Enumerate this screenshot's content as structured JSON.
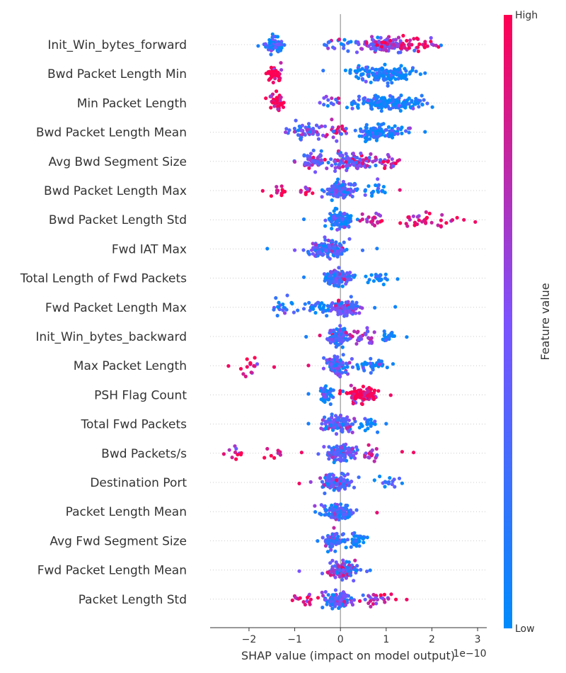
{
  "chart_data": {
    "type": "scatter",
    "subtype": "shap-beeswarm",
    "xlabel": "SHAP value (impact on model output)",
    "x_offset_label": "1e−10",
    "xlim": [
      -2.85,
      3.2
    ],
    "xticks": [
      -2,
      -1,
      0,
      1,
      2,
      3
    ],
    "xtick_labels": [
      "−2",
      "−1",
      "0",
      "1",
      "2",
      "3"
    ],
    "colorbar": {
      "title": "Feature value",
      "high_label": "High",
      "low_label": "Low",
      "low_color": "#008bfb",
      "mid_color": "#7c52ff",
      "high_color": "#ff0052"
    },
    "features": [
      {
        "name": "Init_Win_bytes_forward",
        "clusters": [
          [
            -1.45,
            0.2,
            60,
            0.1,
            0.85
          ],
          [
            0.0,
            0.32,
            18,
            0.3
          ],
          [
            1.0,
            0.55,
            110,
            0.55
          ],
          [
            1.5,
            0.6,
            40,
            0.9
          ]
        ],
        "outliers": [
          [
            -1.8,
            0.1
          ],
          [
            -0.35,
            0.2
          ],
          [
            2.2,
            0.1
          ],
          [
            2.0,
            0.6
          ]
        ]
      },
      {
        "name": "Bwd Packet Length Min",
        "clusters": [
          [
            -1.45,
            0.15,
            50,
            0.95,
            0.95
          ],
          [
            0.95,
            0.6,
            150,
            0.05,
            0.8
          ]
        ],
        "outliers": [
          [
            1.85,
            0.1
          ],
          [
            1.75,
            0.0
          ]
        ]
      },
      {
        "name": "Min Packet Length",
        "clusters": [
          [
            -1.4,
            0.17,
            45,
            0.95,
            0.9
          ],
          [
            -0.15,
            0.2,
            12,
            0.5
          ],
          [
            1.0,
            0.7,
            170,
            0.05
          ]
        ],
        "outliers": [
          [
            -0.45,
            0.5
          ],
          [
            1.7,
            0.05
          ]
        ]
      },
      {
        "name": "Bwd Packet Length Mean",
        "clusters": [
          [
            -0.75,
            0.3,
            50,
            0.4,
            0.95
          ],
          [
            -0.1,
            0.2,
            25,
            0.7
          ],
          [
            0.85,
            0.45,
            110,
            0.1
          ]
        ],
        "outliers": [
          [
            -1.2,
            0.6
          ],
          [
            1.85,
            0.05
          ],
          [
            1.5,
            0.1
          ]
        ]
      },
      {
        "name": "Avg Bwd Segment Size",
        "clusters": [
          [
            -0.6,
            0.3,
            60,
            0.4,
            0.95
          ],
          [
            0.25,
            0.45,
            120,
            0.5
          ],
          [
            1.0,
            0.2,
            20,
            0.8
          ]
        ],
        "outliers": [
          [
            -1.0,
            0.7
          ],
          [
            1.25,
            0.9
          ]
        ]
      },
      {
        "name": "Bwd Packet Length Max",
        "clusters": [
          [
            -1.3,
            0.15,
            12,
            0.95
          ],
          [
            -0.75,
            0.15,
            12,
            0.95
          ],
          [
            0.0,
            0.3,
            130,
            0.35
          ],
          [
            0.8,
            0.3,
            20,
            0.05
          ]
        ],
        "outliers": [
          [
            -1.7,
            0.95
          ],
          [
            1.3,
            0.9
          ]
        ]
      },
      {
        "name": "Bwd Packet Length Std",
        "clusters": [
          [
            0.0,
            0.25,
            130,
            0.15,
            0.9
          ],
          [
            0.7,
            0.2,
            20,
            0.8
          ],
          [
            1.8,
            0.55,
            30,
            0.9
          ]
        ],
        "outliers": [
          [
            -0.8,
            0.1
          ],
          [
            2.95,
            0.95
          ],
          [
            2.7,
            0.95
          ],
          [
            2.45,
            0.9
          ],
          [
            2.2,
            0.95
          ]
        ]
      },
      {
        "name": "Fwd IAT Max",
        "clusters": [
          [
            -0.3,
            0.4,
            140,
            0.3,
            0.85
          ]
        ],
        "outliers": [
          [
            -1.6,
            0.05
          ],
          [
            -1.0,
            0.5
          ],
          [
            0.8,
            0.1
          ]
        ]
      },
      {
        "name": "Total Length of Fwd Packets",
        "clusters": [
          [
            -0.05,
            0.28,
            120,
            0.3
          ],
          [
            0.8,
            0.25,
            20,
            0.05
          ]
        ],
        "outliers": [
          [
            -0.8,
            0.1
          ],
          [
            1.25,
            0.05
          ]
        ]
      },
      {
        "name": "Fwd Packet Length Max",
        "clusters": [
          [
            -1.25,
            0.25,
            20,
            0.05,
            0.85
          ],
          [
            -0.45,
            0.3,
            40,
            0.15
          ],
          [
            0.15,
            0.25,
            110,
            0.45
          ]
        ],
        "outliers": [
          [
            1.2,
            0.05
          ],
          [
            0.75,
            0.1
          ]
        ]
      },
      {
        "name": "Init_Win_bytes_backward",
        "clusters": [
          [
            -0.05,
            0.22,
            110,
            0.3,
            0.85
          ],
          [
            0.5,
            0.25,
            30,
            0.6
          ],
          [
            1.1,
            0.18,
            18,
            0.1
          ]
        ],
        "outliers": [
          [
            -0.75,
            0.1
          ],
          [
            -0.45,
            0.9
          ],
          [
            1.45,
            0.05
          ]
        ]
      },
      {
        "name": "Max Packet Length",
        "clusters": [
          [
            -2.0,
            0.2,
            14,
            0.95,
            0.95
          ],
          [
            -0.1,
            0.2,
            100,
            0.3,
            0.85
          ],
          [
            0.65,
            0.3,
            40,
            0.05
          ]
        ],
        "outliers": [
          [
            -2.45,
            0.95
          ],
          [
            -1.45,
            0.95
          ],
          [
            -0.7,
            0.9
          ],
          [
            1.15,
            0.05
          ]
        ]
      },
      {
        "name": "PSH Flag Count",
        "clusters": [
          [
            -0.3,
            0.15,
            50,
            0.05,
            0.85
          ],
          [
            0.45,
            0.3,
            110,
            0.95
          ]
        ],
        "outliers": [
          [
            -0.7,
            0.1
          ],
          [
            1.1,
            0.95
          ]
        ]
      },
      {
        "name": "Total Fwd Packets",
        "clusters": [
          [
            -0.05,
            0.28,
            120,
            0.35,
            0.8
          ],
          [
            0.6,
            0.2,
            20,
            0.05
          ]
        ],
        "outliers": [
          [
            -0.7,
            0.1
          ],
          [
            1.0,
            0.1
          ]
        ]
      },
      {
        "name": "Bwd Packets/s",
        "clusters": [
          [
            -2.3,
            0.2,
            10,
            0.95
          ],
          [
            -1.4,
            0.3,
            8,
            0.95
          ],
          [
            0.0,
            0.3,
            130,
            0.35,
            0.8
          ],
          [
            0.65,
            0.2,
            20,
            0.8
          ]
        ],
        "outliers": [
          [
            -2.55,
            0.9
          ],
          [
            -0.85,
            0.95
          ],
          [
            1.35,
            0.95
          ],
          [
            1.6,
            0.95
          ]
        ]
      },
      {
        "name": "Destination Port",
        "clusters": [
          [
            -0.1,
            0.3,
            120,
            0.3,
            0.8
          ],
          [
            1.0,
            0.25,
            15,
            0.05
          ]
        ],
        "outliers": [
          [
            -0.9,
            0.95
          ],
          [
            1.35,
            0.05
          ],
          [
            -0.65,
            0.6
          ]
        ]
      },
      {
        "name": "Packet Length Mean",
        "clusters": [
          [
            -0.05,
            0.28,
            130,
            0.3,
            0.8
          ]
        ],
        "outliers": [
          [
            -0.55,
            0.1
          ],
          [
            0.8,
            0.9
          ]
        ]
      },
      {
        "name": "Avg Fwd Segment Size",
        "clusters": [
          [
            -0.15,
            0.2,
            90,
            0.3,
            0.8
          ],
          [
            0.35,
            0.2,
            40,
            0.05
          ]
        ],
        "outliers": [
          [
            -0.5,
            0.1
          ]
        ]
      },
      {
        "name": "Fwd Packet Length Mean",
        "clusters": [
          [
            0.05,
            0.27,
            130,
            0.45,
            0.85
          ]
        ],
        "outliers": [
          [
            -0.9,
            0.5
          ],
          [
            0.65,
            0.1
          ]
        ]
      },
      {
        "name": "Packet Length Std",
        "clusters": [
          [
            -0.8,
            0.2,
            15,
            0.9
          ],
          [
            -0.05,
            0.3,
            120,
            0.3,
            0.85
          ],
          [
            0.75,
            0.35,
            25,
            0.85
          ]
        ],
        "outliers": [
          [
            -1.05,
            0.95
          ],
          [
            1.45,
            0.95
          ]
        ]
      }
    ],
    "cluster_fields": [
      "center",
      "spread",
      "count",
      "mean_feature_value",
      "density"
    ],
    "outlier_fields": [
      "shap_value",
      "feature_value"
    ]
  }
}
